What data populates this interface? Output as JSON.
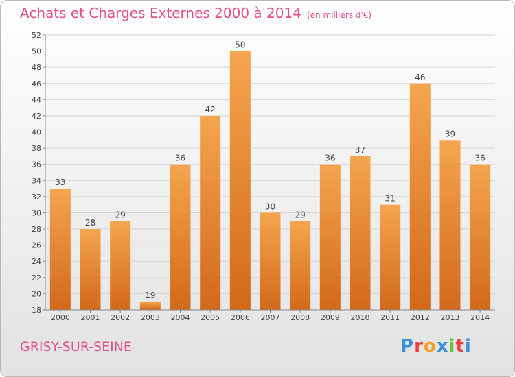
{
  "title": "Achats et Charges Externes 2000 à 2014",
  "subtitle": "(en milliers d'€)",
  "town": "GRISY-SUR-SEINE",
  "logo": {
    "text": "Proxiti",
    "colors": [
      "#3a8fd8",
      "#e8403c",
      "#f5a020",
      "#3a8fd8",
      "#6cbf3c",
      "#e8403c",
      "#3a8fd8"
    ]
  },
  "colors": {
    "bar_top": "#f5a54f",
    "bar_bottom": "#d2691a",
    "title": "#e0508a"
  },
  "chart_data": {
    "type": "bar",
    "categories": [
      "2000",
      "2001",
      "2002",
      "2003",
      "2004",
      "2005",
      "2006",
      "2007",
      "2008",
      "2009",
      "2010",
      "2011",
      "2012",
      "2013",
      "2014"
    ],
    "values": [
      33,
      28,
      29,
      19,
      36,
      42,
      50,
      30,
      29,
      36,
      37,
      31,
      46,
      39,
      36
    ],
    "ylim": [
      18,
      52
    ],
    "yticks": [
      18,
      20,
      22,
      24,
      26,
      28,
      30,
      32,
      34,
      36,
      38,
      40,
      42,
      44,
      46,
      48,
      50,
      52
    ],
    "grid": true
  }
}
